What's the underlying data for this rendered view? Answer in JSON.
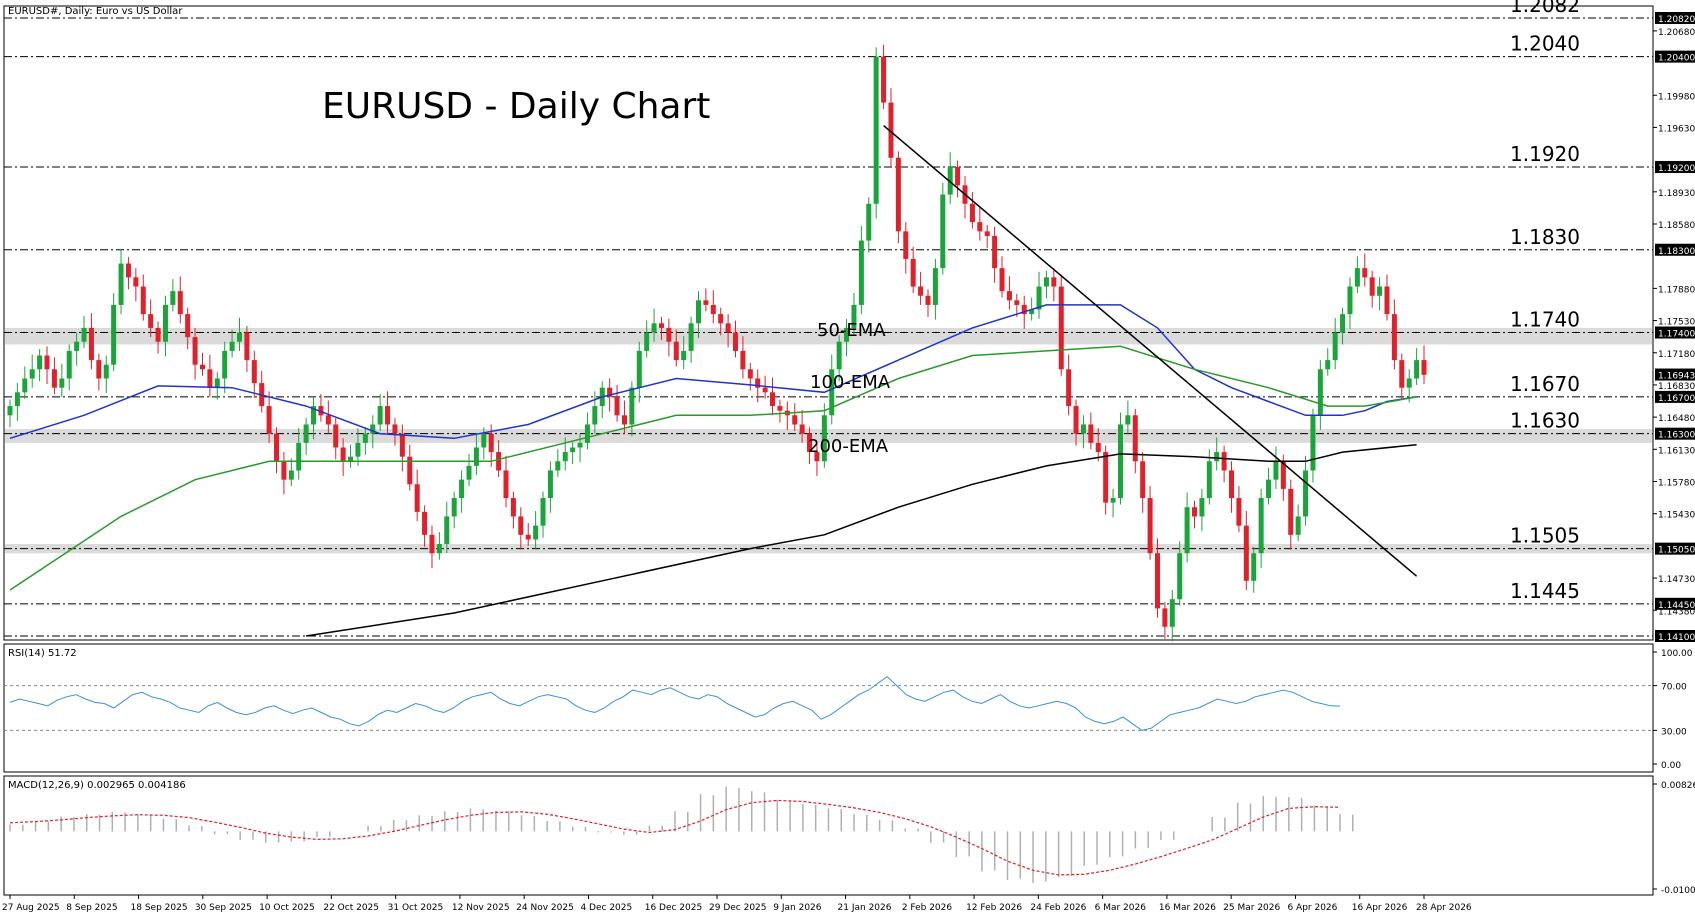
{
  "window": {
    "header": "EURUSD#, Daily:  Euro vs US Dollar",
    "title": "EURUSD - Daily Chart"
  },
  "colors": {
    "bull": "#1aa53a",
    "bear": "#e0202a",
    "ema50": "#2233cc",
    "ema100": "#2a9a2a",
    "ema200": "#000000",
    "rsi": "#3a8fe0",
    "macd_signal": "#e0202a",
    "macd_hist": "#b0b0b0",
    "zone": "#d3d3d3"
  },
  "labels": {
    "ema50": "50-EMA",
    "ema100": "100-EMA",
    "ema200": "200-EMA",
    "rsi": "RSI(14) 51.72",
    "macd": "MACD(12,26,9) 0.002965 0.004186"
  },
  "chart_data": [
    {
      "type": "candlestick",
      "title": "EURUSD - Daily Chart",
      "ylim": [
        1.141,
        1.2082
      ],
      "level_labels": [
        "1.2082",
        "1.2040",
        "1.1920",
        "1.1830",
        "1.1740",
        "1.1670",
        "1.1630",
        "1.1505",
        "1.1445"
      ],
      "levels": [
        1.2082,
        1.204,
        1.192,
        1.183,
        1.174,
        1.167,
        1.163,
        1.1505,
        1.1445,
        1.141
      ],
      "zones": [
        [
          1.1727,
          1.1745
        ],
        [
          1.162,
          1.1635
        ],
        [
          1.15,
          1.151
        ]
      ],
      "axis_ticks": [
        "1.20820",
        "1.20680",
        "1.20400",
        "1.19980",
        "1.19630",
        "1.19200",
        "1.18930",
        "1.18580",
        "1.18300",
        "1.17880",
        "1.17530",
        "1.17400",
        "1.17180",
        "1.16943",
        "1.16830",
        "1.16700",
        "1.16480",
        "1.16300",
        "1.16130",
        "1.15780",
        "1.15430",
        "1.15050",
        "1.14730",
        "1.14450",
        "1.14380",
        "1.14100"
      ],
      "dates": [
        "27 Aug 2025",
        "8 Sep 2025",
        "18 Sep 2025",
        "30 Sep 2025",
        "10 Oct 2025",
        "22 Oct 2025",
        "31 Oct 2025",
        "12 Nov 2025",
        "24 Nov 2025",
        "4 Dec 2025",
        "16 Dec 2025",
        "29 Dec 2025",
        "9 Jan 2026",
        "21 Jan 2026",
        "2 Feb 2026",
        "12 Feb 2026",
        "24 Feb 2026",
        "6 Mar 2026",
        "16 Mar 2026",
        "25 Mar 2026",
        "6 Apr 2026",
        "16 Apr 2026",
        "28 Apr 2026"
      ],
      "close": [
        1.166,
        1.1675,
        1.169,
        1.17,
        1.1715,
        1.17,
        1.168,
        1.169,
        1.172,
        1.173,
        1.1745,
        1.171,
        1.169,
        1.1705,
        1.177,
        1.1815,
        1.18,
        1.179,
        1.176,
        1.1745,
        1.173,
        1.177,
        1.1785,
        1.176,
        1.1735,
        1.1705,
        1.17,
        1.168,
        1.169,
        1.172,
        1.173,
        1.174,
        1.171,
        1.1685,
        1.166,
        1.163,
        1.16,
        1.158,
        1.159,
        1.162,
        1.164,
        1.166,
        1.165,
        1.164,
        1.1615,
        1.16,
        1.1605,
        1.162,
        1.163,
        1.164,
        1.166,
        1.164,
        1.163,
        1.1605,
        1.1575,
        1.1545,
        1.152,
        1.15,
        1.151,
        1.154,
        1.156,
        1.158,
        1.1595,
        1.1615,
        1.163,
        1.161,
        1.159,
        1.156,
        1.154,
        1.152,
        1.1515,
        1.153,
        1.156,
        1.159,
        1.16,
        1.161,
        1.1615,
        1.162,
        1.164,
        1.166,
        1.168,
        1.167,
        1.165,
        1.164,
        1.168,
        1.172,
        1.174,
        1.175,
        1.1745,
        1.173,
        1.171,
        1.172,
        1.175,
        1.1775,
        1.177,
        1.176,
        1.175,
        1.174,
        1.172,
        1.17,
        1.169,
        1.168,
        1.1675,
        1.166,
        1.1655,
        1.165,
        1.164,
        1.163,
        1.161,
        1.16,
        1.165,
        1.17,
        1.173,
        1.1745,
        1.177,
        1.184,
        1.188,
        1.204,
        1.199,
        1.193,
        1.185,
        1.182,
        1.179,
        1.178,
        1.177,
        1.181,
        1.189,
        1.192,
        1.19,
        1.188,
        1.186,
        1.185,
        1.1845,
        1.181,
        1.1785,
        1.1775,
        1.177,
        1.176,
        1.1765,
        1.179,
        1.18,
        1.179,
        1.17,
        1.166,
        1.163,
        1.164,
        1.162,
        1.161,
        1.1555,
        1.156,
        1.164,
        1.165,
        1.16,
        1.156,
        1.15,
        1.144,
        1.142,
        1.145,
        1.15,
        1.155,
        1.154,
        1.156,
        1.16,
        1.161,
        1.159,
        1.156,
        1.153,
        1.147,
        1.15,
        1.156,
        1.158,
        1.16,
        1.157,
        1.152,
        1.154,
        1.159,
        1.165,
        1.17,
        1.171,
        1.174,
        1.176,
        1.179,
        1.181,
        1.18,
        1.178,
        1.179,
        1.176,
        1.171,
        1.168,
        1.169,
        1.171,
        1.1694
      ],
      "series": [
        {
          "name": "50-EMA",
          "points": [
            [
              0,
              1.1625
            ],
            [
              10,
              1.165
            ],
            [
              20,
              1.1682
            ],
            [
              30,
              1.168
            ],
            [
              40,
              1.166
            ],
            [
              50,
              1.163
            ],
            [
              60,
              1.1625
            ],
            [
              70,
              1.164
            ],
            [
              80,
              1.167
            ],
            [
              90,
              1.169
            ],
            [
              100,
              1.1683
            ],
            [
              110,
              1.1675
            ],
            [
              120,
              1.171
            ],
            [
              130,
              1.1745
            ],
            [
              140,
              1.177
            ],
            [
              150,
              1.177
            ],
            [
              155,
              1.1745
            ],
            [
              160,
              1.17
            ],
            [
              165,
              1.168
            ],
            [
              170,
              1.1665
            ],
            [
              175,
              1.165
            ],
            [
              180,
              1.165
            ],
            [
              183,
              1.1655
            ],
            [
              186,
              1.1665
            ],
            [
              190,
              1.167
            ]
          ]
        },
        {
          "name": "100-EMA",
          "points": [
            [
              0,
              1.146
            ],
            [
              15,
              1.154
            ],
            [
              25,
              1.158
            ],
            [
              35,
              1.16
            ],
            [
              50,
              1.16
            ],
            [
              65,
              1.16
            ],
            [
              80,
              1.163
            ],
            [
              90,
              1.165
            ],
            [
              100,
              1.165
            ],
            [
              110,
              1.1655
            ],
            [
              120,
              1.169
            ],
            [
              130,
              1.1715
            ],
            [
              140,
              1.172
            ],
            [
              150,
              1.1725
            ],
            [
              160,
              1.17
            ],
            [
              170,
              1.168
            ],
            [
              178,
              1.166
            ],
            [
              183,
              1.166
            ],
            [
              190,
              1.167
            ]
          ]
        },
        {
          "name": "200-EMA",
          "points": [
            [
              40,
              1.141
            ],
            [
              60,
              1.1435
            ],
            [
              80,
              1.147
            ],
            [
              100,
              1.1505
            ],
            [
              110,
              1.152
            ],
            [
              120,
              1.155
            ],
            [
              130,
              1.1575
            ],
            [
              140,
              1.1595
            ],
            [
              150,
              1.1608
            ],
            [
              160,
              1.1605
            ],
            [
              170,
              1.16
            ],
            [
              175,
              1.16
            ],
            [
              180,
              1.161
            ],
            [
              190,
              1.1618
            ]
          ]
        },
        {
          "name": "trendline",
          "points": [
            [
              118,
              1.1965
            ],
            [
              190,
              1.1475
            ]
          ]
        }
      ]
    },
    {
      "type": "line",
      "title": "RSI(14) 51.72",
      "ylim": [
        0,
        100
      ],
      "tick_labels": [
        "100.00",
        "70.00",
        "30.00",
        "0.00"
      ],
      "levels": [
        70,
        30
      ],
      "values": [
        55,
        58,
        56,
        54,
        52,
        57,
        60,
        62,
        58,
        55,
        54,
        50,
        56,
        62,
        64,
        60,
        58,
        55,
        50,
        48,
        46,
        52,
        55,
        50,
        46,
        44,
        46,
        50,
        52,
        48,
        45,
        48,
        50,
        46,
        42,
        40,
        36,
        34,
        38,
        44,
        48,
        46,
        50,
        54,
        52,
        48,
        46,
        50,
        56,
        60,
        62,
        64,
        58,
        54,
        52,
        56,
        60,
        62,
        60,
        58,
        52,
        48,
        46,
        50,
        56,
        60,
        66,
        64,
        62,
        66,
        68,
        64,
        60,
        58,
        62,
        60,
        54,
        50,
        46,
        42,
        44,
        50,
        54,
        56,
        52,
        48,
        40,
        44,
        50,
        56,
        62,
        66,
        72,
        78,
        70,
        62,
        58,
        56,
        60,
        64,
        66,
        60,
        56,
        54,
        58,
        62,
        56,
        52,
        50,
        52,
        54,
        56,
        54,
        50,
        42,
        38,
        36,
        38,
        42,
        36,
        30,
        32,
        38,
        44,
        46,
        48,
        50,
        54,
        58,
        56,
        54,
        56,
        60,
        62,
        64,
        66,
        64,
        60,
        56,
        54,
        52,
        51.72
      ]
    },
    {
      "type": "line",
      "title": "MACD(12,26,9) 0.002965 0.004186",
      "ylim": [
        -0.010058,
        0.008262
      ],
      "tick_labels": [
        "0.008262",
        "-0.010058"
      ],
      "series": [
        {
          "name": "MACD",
          "values": [
            0.0012,
            0.0018,
            0.0026,
            0.003,
            0.0034,
            0.003,
            0.0022,
            0.001,
            -0.0005,
            -0.0015,
            -0.002,
            -0.0018,
            -0.001,
            0.0,
            0.001,
            0.002,
            0.0028,
            0.0035,
            0.004,
            0.0036,
            0.0028,
            0.0018,
            0.0008,
            -0.0002,
            -0.0006,
            0.001,
            0.0035,
            0.0065,
            0.0078,
            0.007,
            0.0055,
            0.0048,
            0.004,
            0.003,
            0.002,
            0.0005,
            -0.002,
            -0.0045,
            -0.007,
            -0.0085,
            -0.009,
            -0.008,
            -0.006,
            -0.0045,
            -0.003,
            -0.0015,
            0.0,
            0.0025,
            0.005,
            0.0062,
            0.006,
            0.0045,
            0.003
          ]
        },
        {
          "name": "Signal",
          "values": [
            0.0015,
            0.0017,
            0.002,
            0.0024,
            0.0027,
            0.0029,
            0.0028,
            0.0024,
            0.0016,
            0.0007,
            -0.0003,
            -0.001,
            -0.0014,
            -0.0013,
            -0.0008,
            0.0,
            0.001,
            0.002,
            0.0028,
            0.0033,
            0.0034,
            0.003,
            0.0022,
            0.0013,
            0.0004,
            -0.0002,
            0.0003,
            0.0018,
            0.0038,
            0.005,
            0.0054,
            0.0052,
            0.0047,
            0.0041,
            0.0033,
            0.0022,
            0.0008,
            -0.001,
            -0.003,
            -0.0052,
            -0.0068,
            -0.0076,
            -0.0075,
            -0.0068,
            -0.0057,
            -0.0044,
            -0.003,
            -0.0015,
            0.0005,
            0.0025,
            0.004,
            0.0043,
            0.0042
          ]
        }
      ]
    }
  ]
}
